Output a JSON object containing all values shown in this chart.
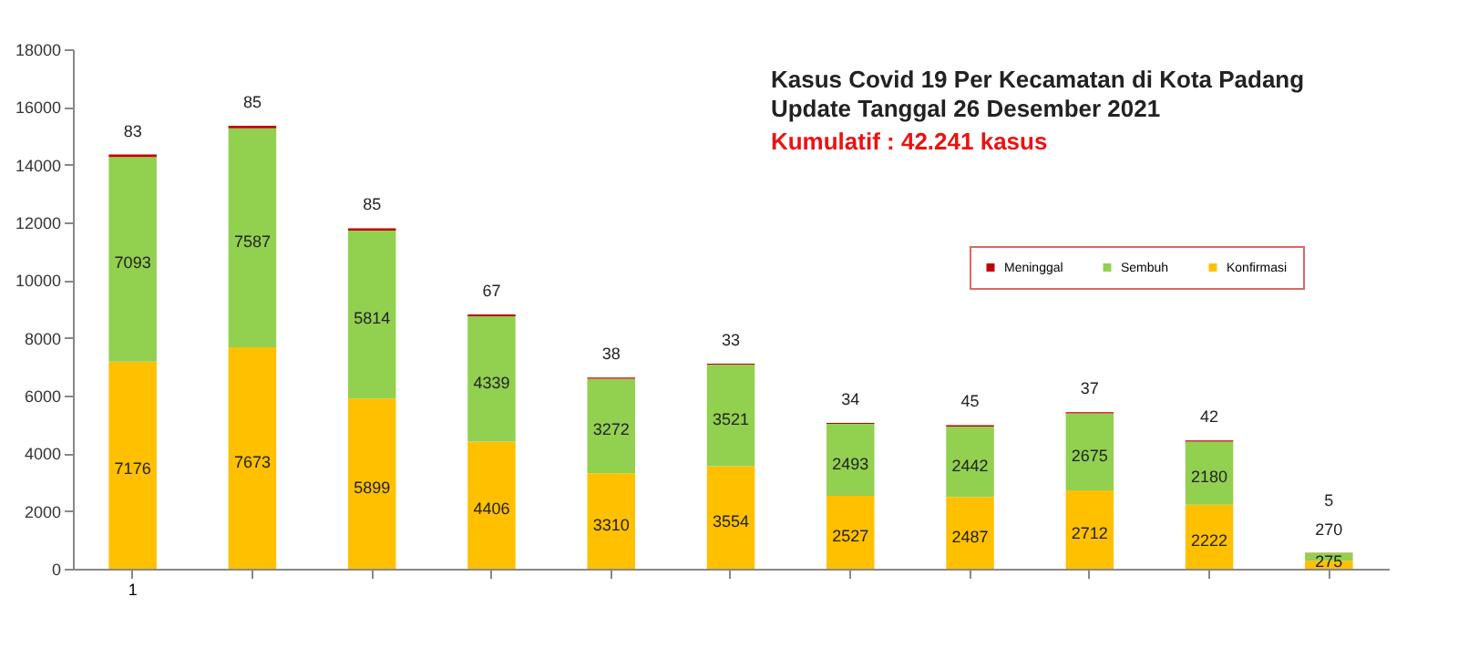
{
  "chart_data": {
    "type": "bar",
    "stacked": true,
    "title": "Kasus Covid 19 Per Kecamatan di Kota Padang\nUpdate Tanggal 26 Desember 2021",
    "subtitle": "Kumulatif : 42.241 kasus",
    "categories": [
      "1",
      null,
      null,
      null,
      null,
      null,
      null,
      null,
      null,
      null,
      null
    ],
    "series": [
      {
        "name": "Konfirmasi",
        "color": "#ffc000",
        "values": [
          7176,
          7673,
          5899,
          4406,
          3310,
          3554,
          2527,
          2487,
          2712,
          2222,
          275
        ]
      },
      {
        "name": "Sembuh",
        "color": "#92d050",
        "values": [
          7093,
          7587,
          5814,
          4339,
          3272,
          3521,
          2493,
          2442,
          2675,
          2180,
          270
        ]
      },
      {
        "name": "Meninggal",
        "color": "#c00000",
        "values": [
          83,
          85,
          85,
          67,
          38,
          33,
          34,
          45,
          37,
          42,
          5
        ]
      }
    ],
    "ylim": [
      0,
      18000
    ],
    "yticks": [
      0,
      2000,
      4000,
      6000,
      8000,
      10000,
      12000,
      14000,
      16000,
      18000
    ],
    "grid": false,
    "legend": "top right",
    "data_labels": true
  }
}
